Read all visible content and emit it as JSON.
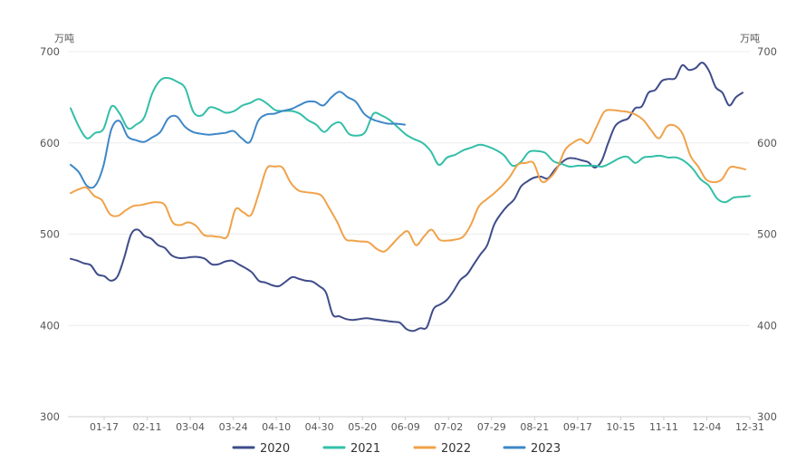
{
  "chart_data": {
    "type": "line",
    "y_unit_left": "万吨",
    "y_unit_right": "万吨",
    "ylim": [
      300,
      700
    ],
    "yticks": [
      300,
      400,
      500,
      600,
      700
    ],
    "grid": true,
    "legend_position": "bottom-center",
    "x_tick_labels": [
      "01-17",
      "02-11",
      "03-04",
      "03-24",
      "04-10",
      "04-30",
      "05-20",
      "06-09",
      "07-02",
      "07-29",
      "08-21",
      "09-17",
      "10-15",
      "11-11",
      "12-04",
      "12-31"
    ],
    "series": [
      {
        "name": "2020",
        "color": "#3f4c8a",
        "values": [
          473,
          471,
          468,
          466,
          456,
          454,
          449,
          454,
          475,
          500,
          505,
          498,
          495,
          488,
          485,
          477,
          474,
          474,
          475,
          475,
          473,
          467,
          467,
          470,
          471,
          467,
          463,
          458,
          449,
          447,
          444,
          443,
          448,
          453,
          451,
          449,
          448,
          443,
          436,
          412,
          410,
          407,
          406,
          407,
          408,
          407,
          406,
          405,
          404,
          403,
          396,
          394,
          397,
          398,
          418,
          423,
          428,
          438,
          450,
          456,
          467,
          478,
          488,
          510,
          522,
          531,
          538,
          552,
          558,
          562,
          563,
          561,
          570,
          578,
          583,
          583,
          581,
          579,
          573,
          580,
          600,
          618,
          624,
          627,
          638,
          640,
          655,
          658,
          668,
          670,
          671,
          685,
          680,
          682,
          688,
          679,
          661,
          655,
          641,
          650,
          655
        ]
      },
      {
        "name": "2021",
        "color": "#33bfa8",
        "values": [
          638,
          618,
          605,
          611,
          615,
          640,
          632,
          616,
          620,
          628,
          655,
          669,
          671,
          667,
          660,
          634,
          630,
          639,
          637,
          633,
          635,
          641,
          644,
          648,
          643,
          636,
          635,
          635,
          632,
          625,
          620,
          612,
          620,
          622,
          610,
          608,
          612,
          632,
          630,
          625,
          617,
          609,
          604,
          600,
          591,
          576,
          584,
          587,
          592,
          595,
          598,
          596,
          592,
          586,
          575,
          579,
          590,
          591,
          589,
          580,
          577,
          574,
          575,
          575,
          575,
          574,
          578,
          583,
          585,
          578,
          584,
          585,
          586,
          584,
          584,
          580,
          572,
          560,
          553,
          539,
          535,
          540,
          541,
          542
        ]
      },
      {
        "name": "2022",
        "color": "#f0a24a",
        "values": [
          545,
          549,
          551,
          542,
          537,
          522,
          520,
          526,
          531,
          532,
          534,
          535,
          532,
          513,
          510,
          513,
          509,
          499,
          498,
          497,
          498,
          527,
          524,
          521,
          545,
          572,
          574,
          573,
          557,
          548,
          546,
          545,
          542,
          528,
          513,
          495,
          493,
          492,
          491,
          484,
          481,
          489,
          498,
          503,
          488,
          497,
          505,
          494,
          493,
          494,
          497,
          510,
          530,
          538,
          545,
          553,
          563,
          576,
          578,
          578,
          558,
          561,
          572,
          592,
          600,
          604,
          600,
          617,
          634,
          636,
          635,
          634,
          631,
          625,
          614,
          605,
          618,
          619,
          610,
          586,
          574,
          560,
          557,
          560,
          573,
          573,
          571
        ]
      },
      {
        "name": "2023",
        "color": "#3e87c7",
        "values": [
          576,
          568,
          553,
          553,
          574,
          615,
          624,
          607,
          603,
          601,
          606,
          612,
          627,
          629,
          618,
          612,
          610,
          609,
          610,
          611,
          613,
          605,
          601,
          624,
          631,
          632,
          635,
          637,
          641,
          645,
          645,
          641,
          650,
          656,
          650,
          645,
          632,
          626,
          623,
          621,
          621,
          620
        ]
      }
    ]
  }
}
